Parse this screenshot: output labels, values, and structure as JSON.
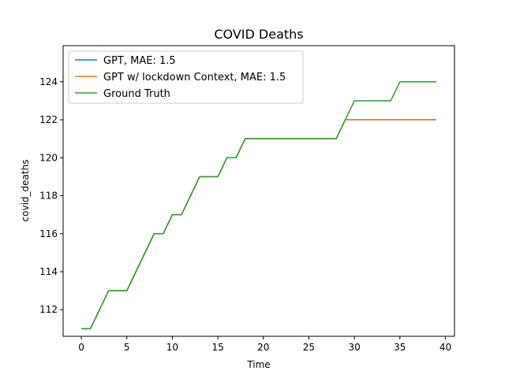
{
  "chart_data": {
    "type": "line",
    "title": "COVID Deaths",
    "xlabel": "Time",
    "ylabel": "covid_deaths",
    "xlim": [
      -2,
      41
    ],
    "ylim": [
      110.6,
      125.9
    ],
    "xticks": [
      0,
      5,
      10,
      15,
      20,
      25,
      30,
      35,
      40
    ],
    "yticks": [
      112,
      114,
      116,
      118,
      120,
      122,
      124
    ],
    "grid": false,
    "legend_position": "top-left",
    "series": [
      {
        "name": "GPT, MAE: 1.5",
        "color": "#1f77b4",
        "x": [
          0,
          1,
          2,
          3,
          4,
          5,
          6,
          7,
          8,
          9,
          10,
          11,
          12,
          13,
          14,
          15,
          16,
          17,
          18,
          19,
          20,
          21,
          22,
          23,
          24,
          25,
          26,
          27,
          28,
          29,
          30,
          31,
          32,
          33,
          34,
          35,
          36,
          37,
          38,
          39
        ],
        "y": [
          111,
          111,
          112,
          113,
          113,
          113,
          114,
          115,
          116,
          116,
          117,
          117,
          118,
          119,
          119,
          119,
          120,
          120,
          121,
          121,
          121,
          121,
          121,
          121,
          121,
          121,
          121,
          121,
          121,
          122,
          122,
          122,
          122,
          122,
          122,
          122,
          122,
          122,
          122,
          122
        ]
      },
      {
        "name": "GPT w/ lockdown Context, MAE: 1.5",
        "color": "#ff7f0e",
        "x": [
          0,
          1,
          2,
          3,
          4,
          5,
          6,
          7,
          8,
          9,
          10,
          11,
          12,
          13,
          14,
          15,
          16,
          17,
          18,
          19,
          20,
          21,
          22,
          23,
          24,
          25,
          26,
          27,
          28,
          29,
          30,
          31,
          32,
          33,
          34,
          35,
          36,
          37,
          38,
          39
        ],
        "y": [
          111,
          111,
          112,
          113,
          113,
          113,
          114,
          115,
          116,
          116,
          117,
          117,
          118,
          119,
          119,
          119,
          120,
          120,
          121,
          121,
          121,
          121,
          121,
          121,
          121,
          121,
          121,
          121,
          121,
          122,
          122,
          122,
          122,
          122,
          122,
          122,
          122,
          122,
          122,
          122
        ]
      },
      {
        "name": "Ground Truth",
        "color": "#2ca02c",
        "x": [
          0,
          1,
          2,
          3,
          4,
          5,
          6,
          7,
          8,
          9,
          10,
          11,
          12,
          13,
          14,
          15,
          16,
          17,
          18,
          19,
          20,
          21,
          22,
          23,
          24,
          25,
          26,
          27,
          28,
          29,
          30,
          31,
          32,
          33,
          34,
          35,
          36,
          37,
          38,
          39
        ],
        "y": [
          111,
          111,
          112,
          113,
          113,
          113,
          114,
          115,
          116,
          116,
          117,
          117,
          118,
          119,
          119,
          119,
          120,
          120,
          121,
          121,
          121,
          121,
          121,
          121,
          121,
          121,
          121,
          121,
          121,
          122,
          123,
          123,
          123,
          123,
          123,
          124,
          124,
          124,
          124,
          124
        ]
      }
    ]
  }
}
